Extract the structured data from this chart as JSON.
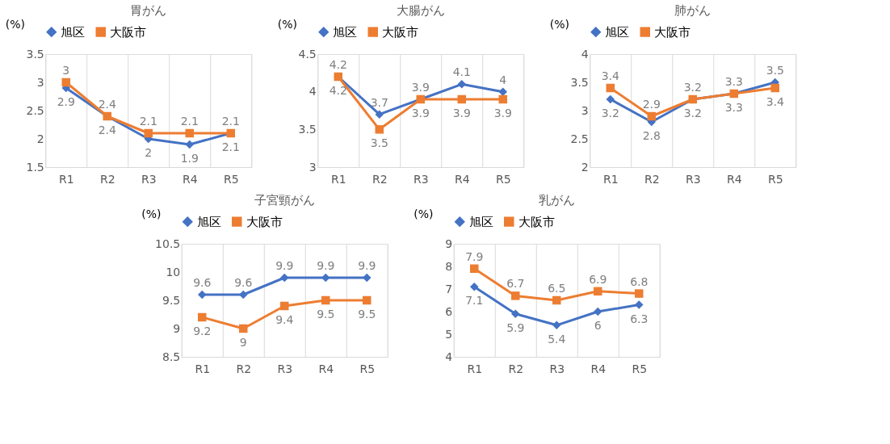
{
  "chart_data": [
    {
      "type": "line",
      "title": "胃がん",
      "ylabel": "(%)",
      "categories": [
        "R1",
        "R2",
        "R3",
        "R4",
        "R5"
      ],
      "ylim": [
        1.5,
        3.5
      ],
      "yticks": [
        1.5,
        2,
        2.5,
        3,
        3.5
      ],
      "grid": "x",
      "legend": "top",
      "data_labels": true,
      "line_style": "solid",
      "series": [
        {
          "name": "旭区",
          "color": "#4472c4",
          "marker": "diamond",
          "values": [
            2.9,
            2.4,
            2,
            1.9,
            2.1
          ]
        },
        {
          "name": "大阪市",
          "color": "#ed7d31",
          "marker": "square",
          "values": [
            3,
            2.4,
            2.1,
            2.1,
            2.1
          ]
        }
      ]
    },
    {
      "type": "line",
      "title": "大腸がん",
      "ylabel": "(%)",
      "categories": [
        "R1",
        "R2",
        "R3",
        "R4",
        "R5"
      ],
      "ylim": [
        3,
        4.5
      ],
      "yticks": [
        3,
        3.5,
        4,
        4.5
      ],
      "grid": "x",
      "legend": "top",
      "data_labels": true,
      "line_style": "solid",
      "series": [
        {
          "name": "旭区",
          "color": "#4472c4",
          "marker": "diamond",
          "values": [
            4.2,
            3.7,
            3.9,
            4.1,
            4
          ]
        },
        {
          "name": "大阪市",
          "color": "#ed7d31",
          "marker": "square",
          "values": [
            4.2,
            3.5,
            3.9,
            3.9,
            3.9
          ]
        }
      ]
    },
    {
      "type": "line",
      "title": "肺がん",
      "ylabel": "(%)",
      "categories": [
        "R1",
        "R2",
        "R3",
        "R4",
        "R5"
      ],
      "ylim": [
        2,
        4
      ],
      "yticks": [
        2,
        2.5,
        3,
        3.5,
        4
      ],
      "grid": "x",
      "legend": "top",
      "data_labels": true,
      "line_style": "solid",
      "series": [
        {
          "name": "旭区",
          "color": "#4472c4",
          "marker": "diamond",
          "values": [
            3.2,
            2.8,
            3.2,
            3.3,
            3.5
          ]
        },
        {
          "name": "大阪市",
          "color": "#ed7d31",
          "marker": "square",
          "values": [
            3.4,
            2.9,
            3.2,
            3.3,
            3.4
          ]
        }
      ]
    },
    {
      "type": "line",
      "title": "子宮頸がん",
      "ylabel": "(%)",
      "categories": [
        "R1",
        "R2",
        "R3",
        "R4",
        "R5"
      ],
      "ylim": [
        8.5,
        10.5
      ],
      "yticks": [
        8.5,
        9,
        9.5,
        10,
        10.5
      ],
      "grid": "x",
      "legend": "top",
      "data_labels": true,
      "line_style": "solid",
      "series": [
        {
          "name": "旭区",
          "color": "#4472c4",
          "marker": "diamond",
          "values": [
            9.6,
            9.6,
            9.9,
            9.9,
            9.9
          ]
        },
        {
          "name": "大阪市",
          "color": "#ed7d31",
          "marker": "square",
          "values": [
            9.2,
            9,
            9.4,
            9.5,
            9.5
          ]
        }
      ]
    },
    {
      "type": "line",
      "title": "乳がん",
      "ylabel": "(%)",
      "categories": [
        "R1",
        "R2",
        "R3",
        "R4",
        "R5"
      ],
      "ylim": [
        4,
        9
      ],
      "yticks": [
        4,
        5,
        6,
        7,
        8,
        9
      ],
      "grid": "x",
      "legend": "top",
      "data_labels": true,
      "line_style": "solid",
      "series": [
        {
          "name": "旭区",
          "color": "#4472c4",
          "marker": "diamond",
          "values": [
            7.1,
            5.9,
            5.4,
            6,
            6.3
          ]
        },
        {
          "name": "大阪市",
          "color": "#ed7d31",
          "marker": "square",
          "values": [
            7.9,
            6.7,
            6.5,
            6.9,
            6.8
          ]
        }
      ]
    }
  ]
}
